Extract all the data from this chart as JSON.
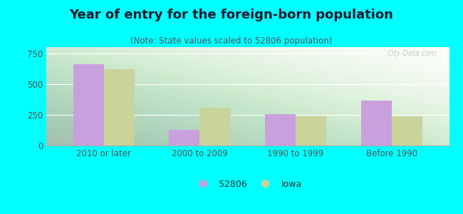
{
  "title": "Year of entry for the foreign-born population",
  "subtitle": "(Note: State values scaled to 52806 population)",
  "categories": [
    "2010 or later",
    "2000 to 2009",
    "1990 to 1999",
    "Before 1990"
  ],
  "values_52806": [
    660,
    130,
    255,
    365
  ],
  "values_iowa": [
    620,
    310,
    240,
    240
  ],
  "color_52806": "#c9a0dc",
  "color_iowa": "#c8d49a",
  "background_color": "#00ffff",
  "ylim": [
    0,
    800
  ],
  "yticks": [
    0,
    250,
    500,
    750
  ],
  "legend_label_52806": "52806",
  "legend_label_iowa": "Iowa",
  "bar_width": 0.32,
  "title_fontsize": 13,
  "subtitle_fontsize": 8.5,
  "tick_fontsize": 8.5,
  "legend_fontsize": 9,
  "grid_color": "#e0ede0",
  "tick_color": "#555555"
}
